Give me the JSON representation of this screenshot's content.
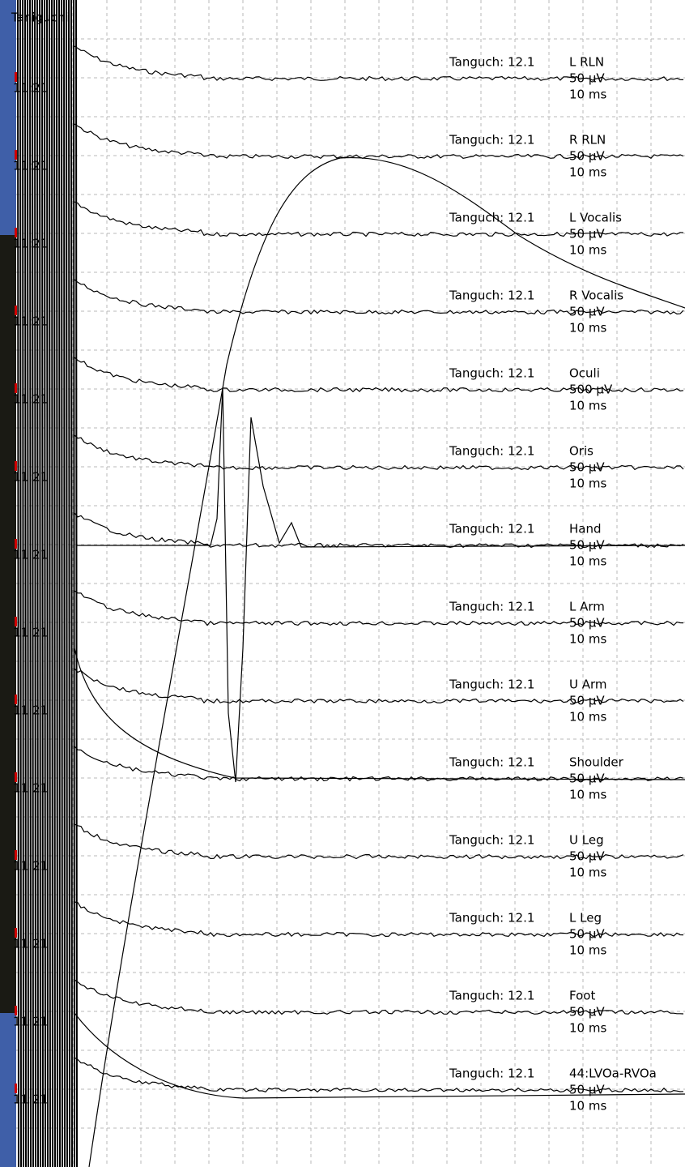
{
  "header": {
    "title": "Taniguchi"
  },
  "channels": [
    {
      "subject": "Tanguch: 12.1",
      "name": "L RLN",
      "gain": "50 µV",
      "sweep": "10 ms",
      "time": "11:21"
    },
    {
      "subject": "Tanguch: 12.1",
      "name": "R RLN",
      "gain": "50 µV",
      "sweep": "10 ms",
      "time": "11:21"
    },
    {
      "subject": "Tanguch: 12.1",
      "name": "L Vocalis",
      "gain": "50 µV",
      "sweep": "10 ms",
      "time": "11:21"
    },
    {
      "subject": "Tanguch: 12.1",
      "name": "R Vocalis",
      "gain": "50 µV",
      "sweep": "10 ms",
      "time": "11:21"
    },
    {
      "subject": "Tanguch: 12.1",
      "name": "Oculi",
      "gain": "500 µV",
      "sweep": "10 ms",
      "time": "11:21"
    },
    {
      "subject": "Tanguch: 12.1",
      "name": "Oris",
      "gain": "50 µV",
      "sweep": "10 ms",
      "time": "11:21"
    },
    {
      "subject": "Tanguch: 12.1",
      "name": "Hand",
      "gain": "50 µV",
      "sweep": "10 ms",
      "time": "11:21"
    },
    {
      "subject": "Tanguch: 12.1",
      "name": "L Arm",
      "gain": "50 µV",
      "sweep": "10 ms",
      "time": "11:21"
    },
    {
      "subject": "Tanguch: 12.1",
      "name": "U Arm",
      "gain": "50 µV",
      "sweep": "10 ms",
      "time": "11:21"
    },
    {
      "subject": "Tanguch: 12.1",
      "name": "Shoulder",
      "gain": "50 µV",
      "sweep": "10 ms",
      "time": "11:21"
    },
    {
      "subject": "Tanguch: 12.1",
      "name": "U Leg",
      "gain": "50 µV",
      "sweep": "10 ms",
      "time": "11:21"
    },
    {
      "subject": "Tanguch: 12.1",
      "name": "L Leg",
      "gain": "50 µV",
      "sweep": "10 ms",
      "time": "11:21"
    },
    {
      "subject": "Tanguch: 12.1",
      "name": "Foot",
      "gain": "50 µV",
      "sweep": "10 ms",
      "time": "11:21"
    },
    {
      "subject": "Tanguch: 12.1",
      "name": "44:LVOa-RVOa",
      "gain": "50 µV",
      "sweep": "10 ms",
      "time": "11:21"
    }
  ]
}
